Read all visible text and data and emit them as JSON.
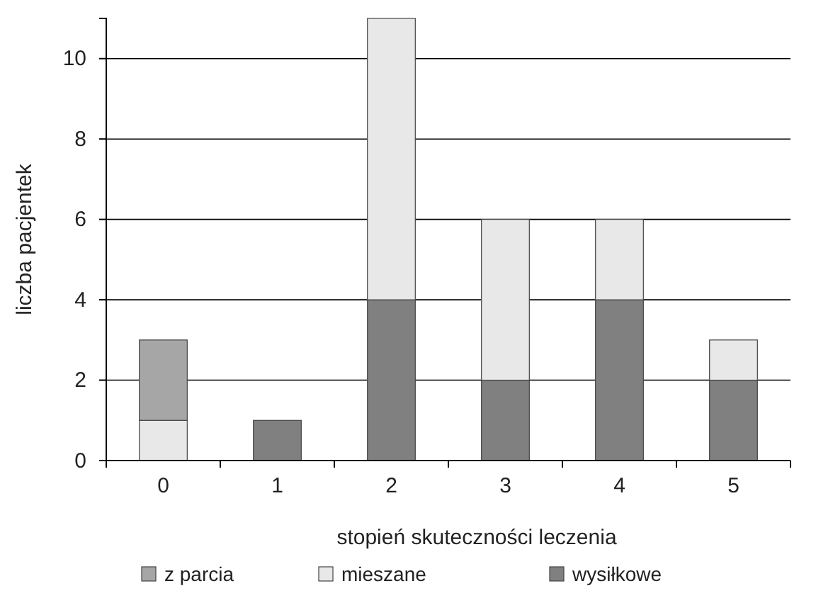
{
  "chart_data": {
    "type": "bar",
    "stacked": true,
    "xlabel": "stopień skuteczności leczenia",
    "ylabel": "liczba pacjentek",
    "categories": [
      "0",
      "1",
      "2",
      "3",
      "4",
      "5"
    ],
    "series": [
      {
        "name": "wysiłkowe",
        "color": "#808080",
        "values": [
          0,
          1,
          4,
          2,
          4,
          2
        ]
      },
      {
        "name": "mieszane",
        "color": "#e8e8e8",
        "values": [
          1,
          0,
          7,
          4,
          2,
          1
        ]
      },
      {
        "name": "z parcia",
        "color": "#a6a6a6",
        "values": [
          2,
          0,
          0,
          0,
          0,
          0
        ]
      }
    ],
    "ylim": [
      0,
      11
    ],
    "yticks": [
      0,
      2,
      4,
      6,
      8,
      10
    ],
    "grid": "y",
    "legend": "bottom"
  }
}
